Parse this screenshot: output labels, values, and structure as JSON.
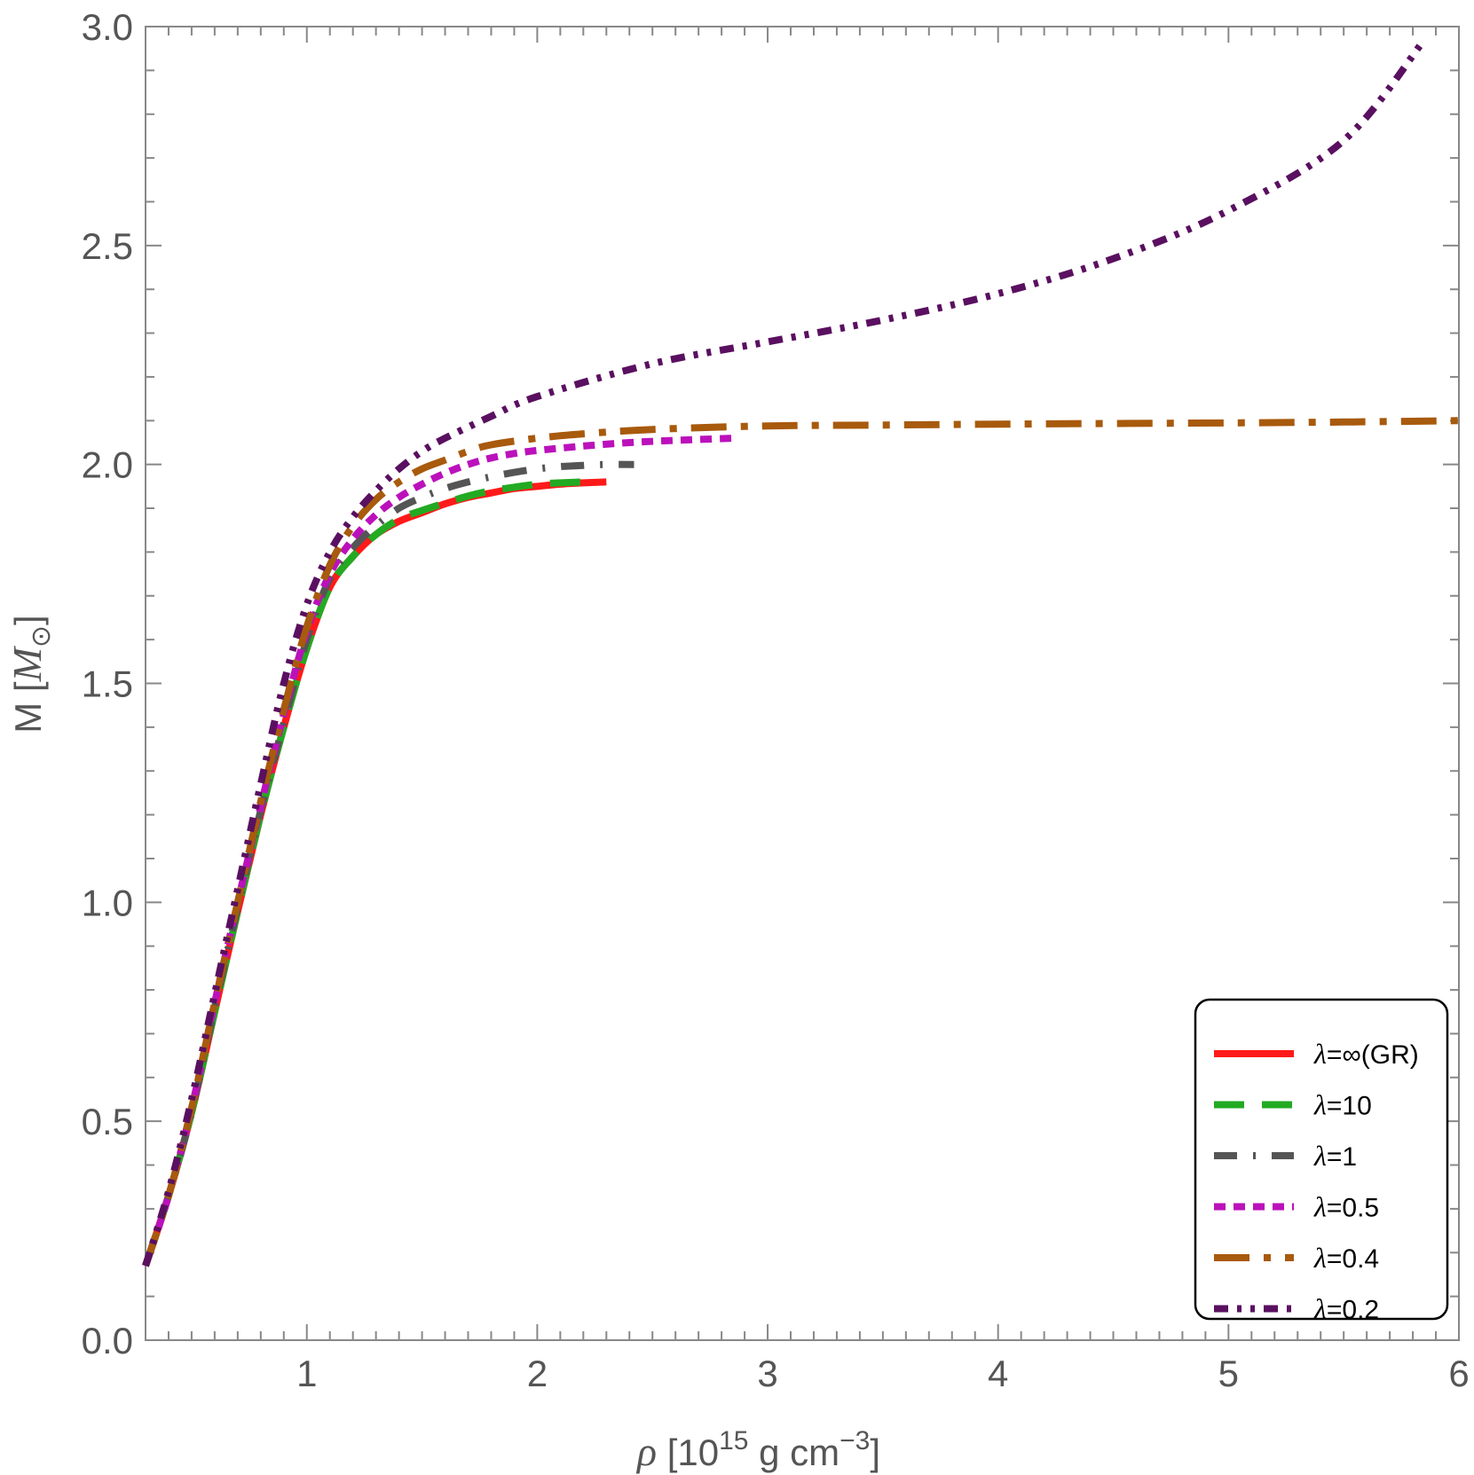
{
  "chart_data": {
    "type": "line",
    "title": "",
    "xlabel": "ρ [10^15 g cm^-3]",
    "xlabel_parts": {
      "symbol": "ρ",
      "open": " [10",
      "exp": "15",
      "mid": " g cm",
      "exp2": "−3",
      "close": "]"
    },
    "ylabel": "M [M⊙]",
    "ylabel_parts": {
      "plain": "M [",
      "symbol": "M",
      "sub": "⊙",
      "close": "]"
    },
    "xlim": [
      0.3,
      6.0
    ],
    "ylim": [
      0.0,
      3.0
    ],
    "x_ticks": [
      1,
      2,
      3,
      4,
      5,
      6
    ],
    "x_tick_labels": [
      "1",
      "2",
      "3",
      "4",
      "5",
      "6"
    ],
    "y_ticks": [
      0.0,
      0.5,
      1.0,
      1.5,
      2.0,
      2.5,
      3.0
    ],
    "y_tick_labels": [
      "0.0",
      "0.5",
      "1.0",
      "1.5",
      "2.0",
      "2.5",
      "3.0"
    ],
    "grid": false,
    "legend_position": "bottom-right",
    "series": [
      {
        "name": "λ=∞(GR)",
        "label_symbol": "λ",
        "label_rest": "=∞(GR)",
        "color": "#ff1a1a",
        "dash": "solid",
        "points": [
          [
            0.3,
            0.17
          ],
          [
            0.4,
            0.33
          ],
          [
            0.5,
            0.52
          ],
          [
            0.6,
            0.75
          ],
          [
            0.7,
            0.98
          ],
          [
            0.8,
            1.2
          ],
          [
            0.9,
            1.4
          ],
          [
            1.0,
            1.58
          ],
          [
            1.1,
            1.72
          ],
          [
            1.2,
            1.79
          ],
          [
            1.3,
            1.84
          ],
          [
            1.4,
            1.87
          ],
          [
            1.5,
            1.89
          ],
          [
            1.6,
            1.91
          ],
          [
            1.7,
            1.925
          ],
          [
            1.8,
            1.935
          ],
          [
            1.9,
            1.945
          ],
          [
            2.0,
            1.95
          ],
          [
            2.1,
            1.955
          ],
          [
            2.2,
            1.958
          ],
          [
            2.3,
            1.96
          ]
        ]
      },
      {
        "name": "λ=10",
        "label_symbol": "λ",
        "label_rest": "=10",
        "color": "#22aa22",
        "dash": "long-dash",
        "points": [
          [
            0.3,
            0.17
          ],
          [
            0.4,
            0.33
          ],
          [
            0.5,
            0.52
          ],
          [
            0.6,
            0.75
          ],
          [
            0.7,
            0.98
          ],
          [
            0.8,
            1.2
          ],
          [
            0.9,
            1.4
          ],
          [
            1.0,
            1.58
          ],
          [
            1.1,
            1.72
          ],
          [
            1.2,
            1.79
          ],
          [
            1.3,
            1.84
          ],
          [
            1.4,
            1.875
          ],
          [
            1.5,
            1.895
          ],
          [
            1.6,
            1.912
          ],
          [
            1.7,
            1.928
          ],
          [
            1.8,
            1.94
          ],
          [
            1.9,
            1.948
          ],
          [
            2.0,
            1.955
          ],
          [
            2.1,
            1.958
          ],
          [
            2.2,
            1.96
          ]
        ]
      },
      {
        "name": "λ=1",
        "label_symbol": "λ",
        "label_rest": "=1",
        "color": "#555555",
        "dash": "dash-dot-thin",
        "points": [
          [
            0.3,
            0.17
          ],
          [
            0.4,
            0.33
          ],
          [
            0.5,
            0.52
          ],
          [
            0.6,
            0.76
          ],
          [
            0.7,
            0.99
          ],
          [
            0.8,
            1.21
          ],
          [
            0.9,
            1.41
          ],
          [
            1.0,
            1.6
          ],
          [
            1.1,
            1.74
          ],
          [
            1.2,
            1.81
          ],
          [
            1.3,
            1.86
          ],
          [
            1.4,
            1.9
          ],
          [
            1.5,
            1.925
          ],
          [
            1.6,
            1.945
          ],
          [
            1.7,
            1.96
          ],
          [
            1.8,
            1.972
          ],
          [
            1.9,
            1.982
          ],
          [
            2.0,
            1.99
          ],
          [
            2.1,
            1.995
          ],
          [
            2.2,
            1.998
          ],
          [
            2.3,
            2.0
          ],
          [
            2.42,
            2.0
          ]
        ]
      },
      {
        "name": "λ=0.5",
        "label_symbol": "λ",
        "label_rest": "=0.5",
        "color": "#bb11bb",
        "dash": "short-dash",
        "points": [
          [
            0.3,
            0.17
          ],
          [
            0.4,
            0.33
          ],
          [
            0.5,
            0.53
          ],
          [
            0.6,
            0.77
          ],
          [
            0.7,
            1.0
          ],
          [
            0.8,
            1.22
          ],
          [
            0.9,
            1.43
          ],
          [
            1.0,
            1.62
          ],
          [
            1.1,
            1.75
          ],
          [
            1.2,
            1.83
          ],
          [
            1.3,
            1.885
          ],
          [
            1.4,
            1.925
          ],
          [
            1.5,
            1.955
          ],
          [
            1.6,
            1.98
          ],
          [
            1.7,
            2.0
          ],
          [
            1.8,
            2.015
          ],
          [
            1.9,
            2.025
          ],
          [
            2.0,
            2.032
          ],
          [
            2.2,
            2.042
          ],
          [
            2.4,
            2.05
          ],
          [
            2.6,
            2.055
          ],
          [
            2.85,
            2.06
          ]
        ]
      },
      {
        "name": "λ=0.4",
        "label_symbol": "λ",
        "label_rest": "=0.4",
        "color": "#a85a0d",
        "dash": "dash-dot-long",
        "points": [
          [
            0.3,
            0.17
          ],
          [
            0.4,
            0.33
          ],
          [
            0.5,
            0.53
          ],
          [
            0.6,
            0.77
          ],
          [
            0.7,
            1.0
          ],
          [
            0.8,
            1.23
          ],
          [
            0.9,
            1.44
          ],
          [
            1.0,
            1.63
          ],
          [
            1.1,
            1.77
          ],
          [
            1.2,
            1.86
          ],
          [
            1.3,
            1.92
          ],
          [
            1.4,
            1.96
          ],
          [
            1.5,
            1.99
          ],
          [
            1.6,
            2.01
          ],
          [
            1.7,
            2.03
          ],
          [
            1.8,
            2.045
          ],
          [
            2.0,
            2.06
          ],
          [
            2.2,
            2.07
          ],
          [
            2.5,
            2.08
          ],
          [
            3.0,
            2.088
          ],
          [
            3.5,
            2.09
          ],
          [
            4.0,
            2.092
          ],
          [
            5.0,
            2.095
          ],
          [
            5.5,
            2.097
          ],
          [
            6.0,
            2.1
          ]
        ]
      },
      {
        "name": "λ=0.2",
        "label_symbol": "λ",
        "label_rest": "=0.2",
        "color": "#5a1060",
        "dash": "dash-dot-dot",
        "points": [
          [
            0.3,
            0.17
          ],
          [
            0.4,
            0.34
          ],
          [
            0.5,
            0.55
          ],
          [
            0.6,
            0.79
          ],
          [
            0.7,
            1.03
          ],
          [
            0.8,
            1.27
          ],
          [
            0.9,
            1.5
          ],
          [
            1.0,
            1.68
          ],
          [
            1.1,
            1.8
          ],
          [
            1.2,
            1.88
          ],
          [
            1.3,
            1.94
          ],
          [
            1.4,
            1.99
          ],
          [
            1.5,
            2.03
          ],
          [
            1.6,
            2.06
          ],
          [
            1.8,
            2.11
          ],
          [
            2.0,
            2.155
          ],
          [
            2.5,
            2.23
          ],
          [
            3.0,
            2.28
          ],
          [
            3.5,
            2.33
          ],
          [
            4.0,
            2.39
          ],
          [
            4.5,
            2.47
          ],
          [
            5.0,
            2.58
          ],
          [
            5.5,
            2.74
          ],
          [
            5.85,
            2.97
          ]
        ]
      }
    ]
  }
}
